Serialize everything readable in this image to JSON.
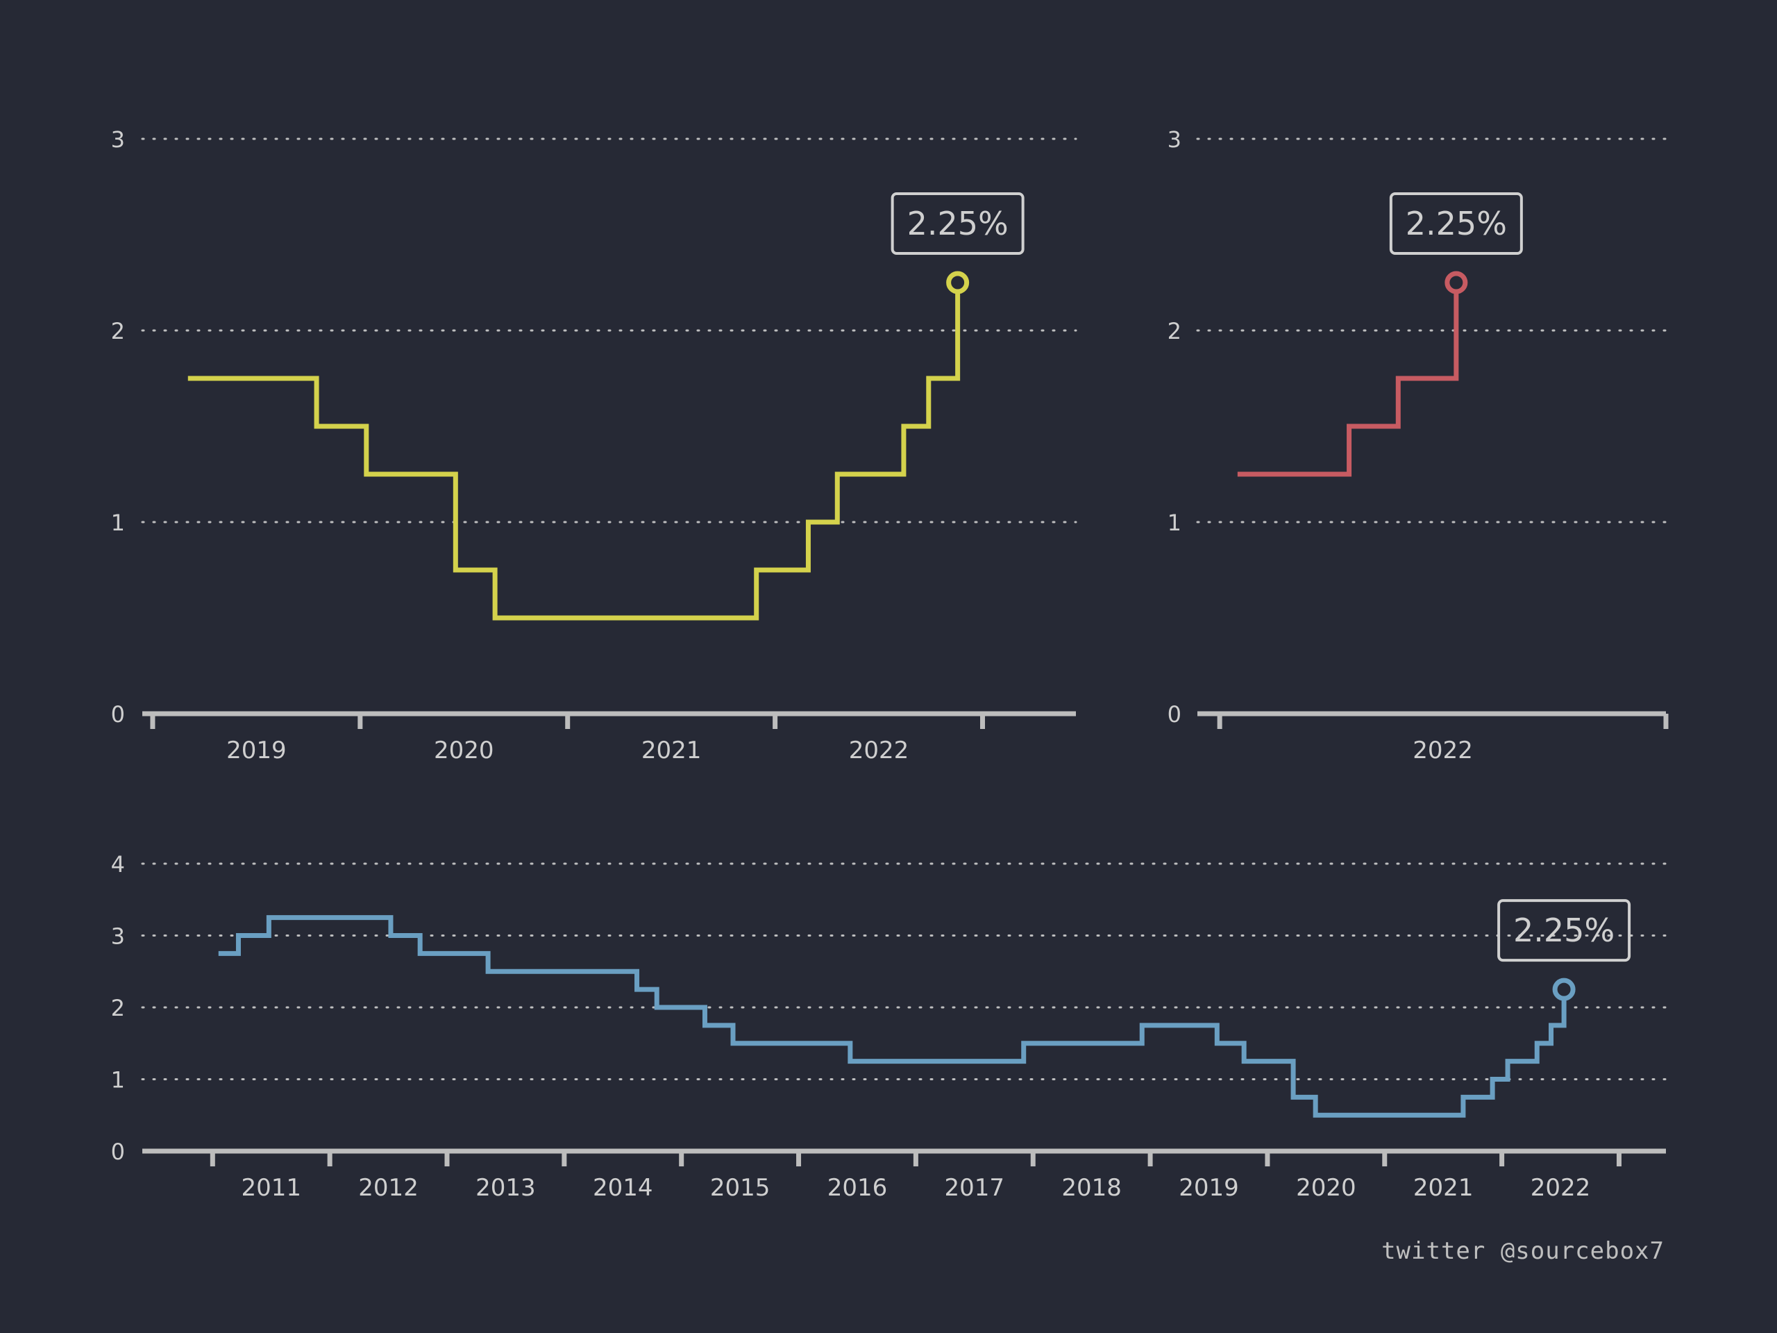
{
  "colors": {
    "background": "#262935",
    "axis": "#bdbdbd",
    "grid": "#cfcfcf",
    "text": "#cfcfcf",
    "callout_border": "#d0d0d0"
  },
  "credit": "twitter @sourcebox7",
  "chart_data": [
    {
      "type": "line",
      "step": true,
      "color": "#d4d24c",
      "ylim": [
        0,
        3
      ],
      "yticks": [
        0,
        1,
        2,
        3
      ],
      "ytick_labels": [
        "0",
        "1",
        "2",
        "3"
      ],
      "xlim": [
        2018.45,
        2022.95
      ],
      "xticks": [
        2018.5,
        2019.5,
        2020.5,
        2021.5,
        2022.5
      ],
      "xtick_labels": [
        {
          "x": 2019.0,
          "text": "2019"
        },
        {
          "x": 2020.0,
          "text": "2020"
        },
        {
          "x": 2021.0,
          "text": "2021"
        },
        {
          "x": 2022.0,
          "text": "2022"
        }
      ],
      "grid": "dotted horizontal",
      "series": [
        {
          "x": [
            2018.67,
            2019.29,
            2019.53,
            2019.96,
            2020.15,
            2021.41,
            2021.66,
            2021.8,
            2022.12,
            2022.24,
            2022.38
          ],
          "y": [
            1.75,
            1.5,
            1.25,
            0.75,
            0.5,
            0.75,
            1.0,
            1.25,
            1.5,
            1.75,
            2.25
          ]
        }
      ],
      "end_label": "2.25%"
    },
    {
      "type": "line",
      "step": true,
      "color": "#c75b62",
      "ylim": [
        0,
        3
      ],
      "yticks": [
        0,
        1,
        2,
        3
      ],
      "ytick_labels": [
        "0",
        "1",
        "2",
        "3"
      ],
      "xlim": [
        2021.95,
        2023.0
      ],
      "xticks": [
        2022.0,
        2023.0
      ],
      "xtick_labels": [
        {
          "x": 2022.5,
          "text": "2022"
        }
      ],
      "grid": "dotted horizontal",
      "series": [
        {
          "x": [
            2022.04,
            2022.29,
            2022.4,
            2022.53
          ],
          "y": [
            1.25,
            1.5,
            1.75,
            2.25
          ]
        }
      ],
      "end_label": "2.25%"
    },
    {
      "type": "line",
      "step": true,
      "color": "#6a9fc2",
      "ylim": [
        0,
        4
      ],
      "yticks": [
        0,
        1,
        2,
        3,
        4
      ],
      "ytick_labels": [
        "0",
        "1",
        "2",
        "3",
        "4"
      ],
      "xlim": [
        2009.9,
        2022.9
      ],
      "xticks": [
        2010.5,
        2011.5,
        2012.5,
        2013.5,
        2014.5,
        2015.5,
        2016.5,
        2017.5,
        2018.5,
        2019.5,
        2020.5,
        2021.5,
        2022.5
      ],
      "xtick_labels": [
        {
          "x": 2011.0,
          "text": "2011"
        },
        {
          "x": 2012.0,
          "text": "2012"
        },
        {
          "x": 2013.0,
          "text": "2013"
        },
        {
          "x": 2014.0,
          "text": "2014"
        },
        {
          "x": 2015.0,
          "text": "2015"
        },
        {
          "x": 2016.0,
          "text": "2016"
        },
        {
          "x": 2017.0,
          "text": "2017"
        },
        {
          "x": 2018.0,
          "text": "2018"
        },
        {
          "x": 2019.0,
          "text": "2019"
        },
        {
          "x": 2020.0,
          "text": "2020"
        },
        {
          "x": 2021.0,
          "text": "2021"
        },
        {
          "x": 2022.0,
          "text": "2022"
        }
      ],
      "grid": "dotted horizontal",
      "series": [
        {
          "x": [
            2010.55,
            2010.72,
            2010.98,
            2012.02,
            2012.27,
            2012.85,
            2014.12,
            2014.29,
            2014.7,
            2014.94,
            2015.94,
            2017.42,
            2018.43,
            2019.07,
            2019.3,
            2019.72,
            2019.91,
            2021.17,
            2021.42,
            2021.55,
            2021.8,
            2021.92,
            2022.03
          ],
          "y": [
            2.75,
            3.0,
            3.25,
            3.0,
            2.75,
            2.5,
            2.25,
            2.0,
            1.75,
            1.5,
            1.25,
            1.5,
            1.75,
            1.5,
            1.25,
            0.75,
            0.5,
            0.75,
            1.0,
            1.25,
            1.5,
            1.75,
            2.25
          ]
        }
      ],
      "end_label": "2.25%"
    }
  ]
}
